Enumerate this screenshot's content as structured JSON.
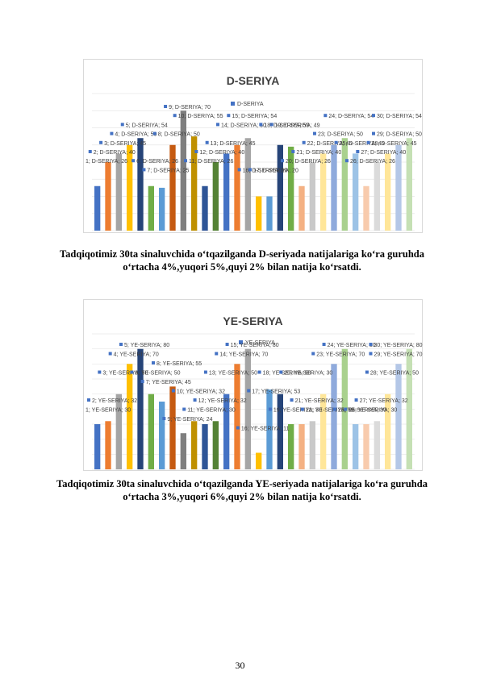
{
  "page_number": "30",
  "captions": {
    "d": "Tadqiqotimiz 30ta sinaluvchida o‘tqazilganda D-seriyada natijalariga ko‘ra guruhda o‘rtacha 4%,yuqori 5%,quyi 2% bilan natija ko‘rsatdi.",
    "ye": "Tadqiqotimiz 30ta sinaluvchida o‘tqazilganda YE-seriyada natijalariga ko‘ra guruhda o‘rtacha 3%,yuqori 6%,quyi 2% bilan natija ko‘rsatdi."
  },
  "chart_data": [
    {
      "type": "bar",
      "title": "D-SERIYA",
      "legend": "D-SERIYA",
      "categories": [
        "1",
        "2",
        "3",
        "4",
        "5",
        "6",
        "7",
        "8",
        "9",
        "10",
        "11",
        "12",
        "13",
        "14",
        "15",
        "16",
        "17",
        "18",
        "19",
        "20",
        "21",
        "22",
        "23",
        "24",
        "25",
        "26",
        "27",
        "28",
        "29",
        "30"
      ],
      "values": [
        26,
        40,
        45,
        50,
        54,
        26,
        25,
        50,
        70,
        55,
        26,
        40,
        45,
        50,
        54,
        20,
        20,
        50,
        49,
        26,
        40,
        45,
        50,
        54,
        45,
        26,
        40,
        45,
        50,
        54
      ],
      "data_labels": [
        "1; D-SERIYA; 26",
        "2; D-SERIYA; 40",
        "3; D-SERIYA; 45",
        "4; D-SERIYA; 50",
        "5; D-SERIYA; 54",
        "6; D-SERIYA; 26",
        "7; D-SERIYA; 25",
        "8; D-SERIYA; 50",
        "9; D-SERIYA; 70",
        "10; D-SERIYA; 55",
        "11; D-SERIYA; 26",
        "12; D-SERIYA; 40",
        "13; D-SERIYA; 45",
        "14; D-SERIYA; 50",
        "15; D-SERIYA; 54",
        "16; D-SERIYA; 20",
        "17; D-SERIYA; 20",
        "18; D-SERIYA; 50",
        "19; D-SERIYA; 49",
        "20; D-SERIYA; 26",
        "21; D-SERIYA; 40",
        "22; D-SERIYA; 45",
        "23; D-SERIYA; 50",
        "24; D-SERIYA; 54",
        "25; D-SERIYA; 45",
        "26; D-SERIYA; 26",
        "27; D-SERIYA; 40",
        "28; D-SERIYA; 45",
        "29; D-SERIYA; 50",
        "30; D-SERIYA; 54"
      ],
      "ylim": [
        0,
        80
      ],
      "grid": true,
      "legend_position": "top"
    },
    {
      "type": "bar",
      "title": "YE-SERIYA",
      "legend": "YE-SERIYA",
      "categories": [
        "1",
        "2",
        "3",
        "4",
        "5",
        "6",
        "7",
        "8",
        "9",
        "10",
        "11",
        "12",
        "13",
        "14",
        "15",
        "16",
        "17",
        "18",
        "19",
        "20",
        "21",
        "22",
        "23",
        "24",
        "25",
        "26",
        "27",
        "28",
        "29",
        "30"
      ],
      "values": [
        30,
        32,
        50,
        70,
        80,
        50,
        45,
        55,
        24,
        32,
        30,
        32,
        50,
        70,
        80,
        11,
        53,
        50,
        30,
        30,
        32,
        50,
        70,
        80,
        30,
        30,
        32,
        50,
        70,
        80
      ],
      "data_labels": [
        "1; YE-SERIYA; 30",
        "2; YE-SERIYA; 32",
        "3; YE-SERIYA; 50",
        "4; YE-SERIYA; 70",
        "5; YE-SERIYA; 80",
        "6; YE-SERIYA; 50",
        "7; YE-SERIYA; 45",
        "8; YE-SERIYA; 55",
        "9; YE-SERIYA; 24",
        "10; YE-SERIYA; 32",
        "11; YE-SERIYA; 30",
        "12; YE-SERIYA; 32",
        "13; YE-SERIYA; 50",
        "14; YE-SERIYA; 70",
        "15; YE-SERIYA; 80",
        "16; YE-SERIYA; 11",
        "17; YE-SERIYA; 53",
        "18; YE-SERIYA; 50",
        "19; YE-SERIYA; 30",
        "20; YE-SERIYA; 30",
        "21; YE-SERIYA; 32",
        "22; YE-SERIYA; 50",
        "23; YE-SERIYA; 70",
        "24; YE-SERIYA; 80",
        "25; YE-SERIYA; 30",
        "26; YE-SERIYA; 30",
        "27; YE-SERIYA; 32",
        "28; YE-SERIYA; 50",
        "29; YE-SERIYA; 70",
        "30; YE-SERIYA; 80"
      ],
      "ylim": [
        0,
        90
      ],
      "grid": true,
      "legend_position": "top"
    }
  ],
  "bar_colors": [
    "#4472c4",
    "#ed7d31",
    "#a5a5a5",
    "#ffc000",
    "#264478",
    "#70ad47",
    "#5b9bd5",
    "#c55a11",
    "#7f7f7f",
    "#bf9000",
    "#2f5597",
    "#548235",
    "#4472c4",
    "#ed7d31",
    "#a5a5a5",
    "#ffc000",
    "#5b9bd5",
    "#264478",
    "#70ad47",
    "#f4b183",
    "#c9c9c9",
    "#ffe699",
    "#8faadc",
    "#a9d18e",
    "#9dc3e6",
    "#f8cbad",
    "#dbdbdb",
    "#ffe699",
    "#b4c7e7",
    "#c5e0b4"
  ],
  "label_marker_color": "#4472c4"
}
